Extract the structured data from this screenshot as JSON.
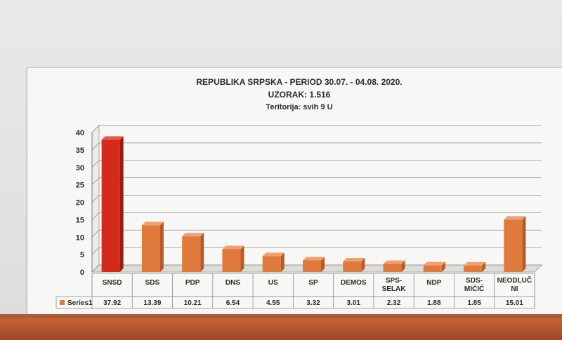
{
  "chart_data": {
    "type": "bar",
    "title": "REPUBLIKA SRPSKA - PERIOD 30.07. - 04.08. 2020.",
    "subtitle": "UZORAK: 1.516",
    "subtitle2": "Teritorija: svih 9 U",
    "categories": [
      [
        "SNSD"
      ],
      [
        "SDS"
      ],
      [
        "PDP"
      ],
      [
        "DNS"
      ],
      [
        "US"
      ],
      [
        "SP"
      ],
      [
        "DEMOS"
      ],
      [
        "SPS-",
        "SELAK"
      ],
      [
        "NDP"
      ],
      [
        "SDS-",
        "MIĆIĆ"
      ],
      [
        "NEODLUČ",
        "NI"
      ]
    ],
    "series": [
      {
        "name": "Series1",
        "values": [
          37.92,
          13.39,
          10.21,
          6.54,
          4.55,
          3.32,
          3.01,
          2.32,
          1.88,
          1.85,
          15.01
        ],
        "value_labels": [
          "37.92",
          "13.39",
          "10.21",
          "6.54",
          "4.55",
          "3.32",
          "3.01",
          "2.32",
          "1.88",
          "1.85",
          "15.01"
        ]
      }
    ],
    "yticks": [
      "0",
      "5",
      "10",
      "15",
      "20",
      "25",
      "30",
      "35",
      "40"
    ],
    "ylim": [
      0,
      40
    ],
    "grid": true,
    "legend": "data-table-left",
    "colors": {
      "bar": "#e07a3c",
      "bar_side": "#b85a26",
      "bar_top": "#f0a070",
      "highlight": "#d42a1a",
      "highlight_side": "#9c1b10",
      "highlight_top": "#e85a48"
    }
  }
}
